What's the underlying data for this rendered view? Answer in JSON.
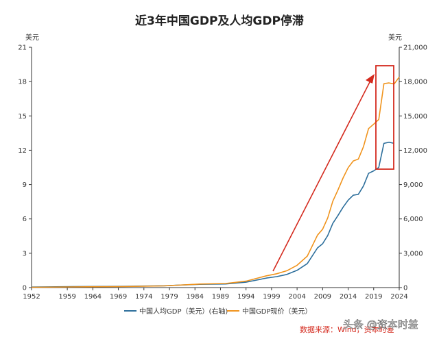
{
  "chart_data": {
    "type": "line",
    "title": "近3年中国GDP及人均GDP停滞",
    "left_axis_unit": "美元",
    "right_axis_unit": "美元",
    "x_ticks": [
      "1952",
      "1959",
      "1964",
      "1969",
      "1974",
      "1979",
      "1984",
      "1989",
      "1994",
      "1999",
      "2004",
      "2009",
      "2014",
      "2019",
      "2024"
    ],
    "xlim": [
      1952,
      2024
    ],
    "left_ylim": [
      0,
      21
    ],
    "right_ylim": [
      0,
      21000
    ],
    "left_ticks": [
      "0",
      "3",
      "6",
      "9",
      "12",
      "15",
      "18",
      "21"
    ],
    "right_ticks": [
      "0",
      "3,000",
      "6,000",
      "9,000",
      "12,000",
      "15,000",
      "18,000",
      "21,000"
    ],
    "grid": false,
    "legend_position": "bottom",
    "series": [
      {
        "name": "中国人均GDP（美元）(右轴)",
        "color": "#2c6e9b",
        "axis": "right",
        "x": [
          1952,
          1960,
          1970,
          1978,
          1985,
          1990,
          1994,
          1998,
          2000,
          2002,
          2004,
          2006,
          2008,
          2009,
          2010,
          2011,
          2012,
          2013,
          2014,
          2015,
          2016,
          2017,
          2018,
          2019,
          2020,
          2021,
          2022,
          2023
        ],
        "y": [
          50,
          90,
          110,
          160,
          290,
          320,
          470,
          830,
          960,
          1150,
          1510,
          2100,
          3470,
          3830,
          4550,
          5610,
          6300,
          7020,
          7640,
          8070,
          8150,
          8880,
          9980,
          10200,
          10500,
          12600,
          12700,
          12600
        ]
      },
      {
        "name": "中国GDP现价（美元）",
        "color": "#f0931c",
        "axis": "left",
        "x": [
          1952,
          1960,
          1970,
          1978,
          1985,
          1990,
          1994,
          1998,
          2000,
          2002,
          2004,
          2006,
          2008,
          2009,
          2010,
          2011,
          2012,
          2013,
          2014,
          2015,
          2016,
          2017,
          2018,
          2019,
          2020,
          2021,
          2022,
          2023,
          2024
        ],
        "y": [
          0.03,
          0.06,
          0.09,
          0.15,
          0.31,
          0.36,
          0.56,
          1.03,
          1.21,
          1.47,
          1.95,
          2.75,
          4.59,
          5.1,
          6.09,
          7.55,
          8.53,
          9.57,
          10.48,
          11.06,
          11.23,
          12.31,
          13.89,
          14.28,
          14.69,
          17.82,
          17.88,
          17.79,
          18.4
        ]
      }
    ],
    "annotation_text": "数据来源：Wind，资本时差",
    "watermark_text": "头条 @资本时差"
  }
}
